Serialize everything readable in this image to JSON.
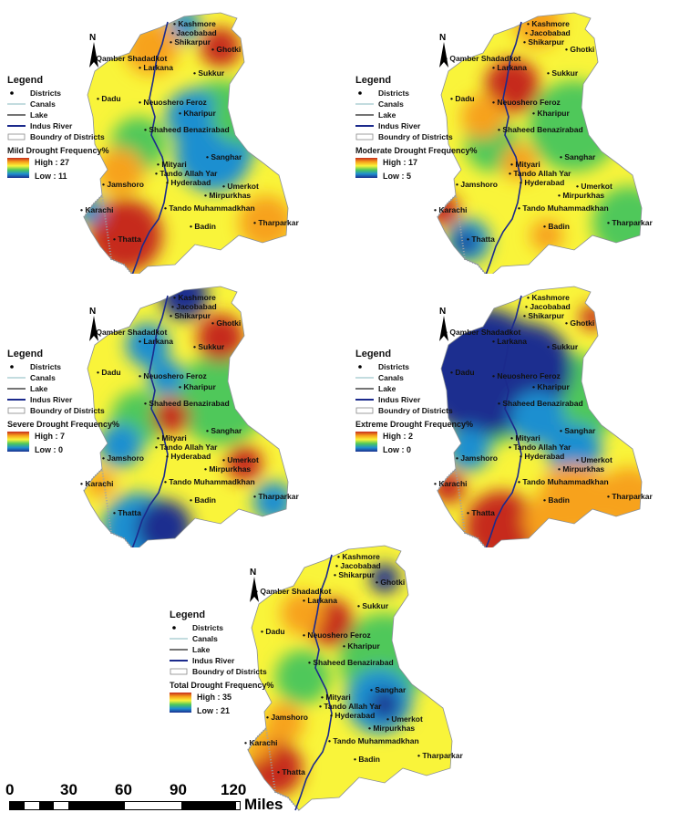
{
  "colors": {
    "high": "#c62c1c",
    "mid_high": "#f7a21b",
    "mid": "#f9f43a",
    "mid_low": "#4fc85a",
    "low": "#1f8fd0",
    "lowest": "#1a2f8f",
    "river": "#1b2a8c",
    "sea_fill": "#dde2e7"
  },
  "legend": {
    "title": "Legend",
    "items": [
      {
        "label": "Districts",
        "icon": "district-point-icon"
      },
      {
        "label": "Canals",
        "icon": "canal-line-icon"
      },
      {
        "label": "Lake",
        "icon": "lake-line-icon"
      },
      {
        "label": "Indus River",
        "icon": "river-line-icon"
      },
      {
        "label": "Boundry of Districts",
        "icon": "boundary-box-icon"
      }
    ]
  },
  "north_label": "N",
  "panels": [
    {
      "ramp_title": "Mild Drought Frequency%",
      "high": "High : 27",
      "low": "Low : 11"
    },
    {
      "ramp_title": "Moderate Drought Frequency%",
      "high": "High : 17",
      "low": "Low : 5"
    },
    {
      "ramp_title": "Severe Drought Frequency%",
      "high": "High : 7",
      "low": "Low : 0"
    },
    {
      "ramp_title": "Extreme Drought Frequency%",
      "high": "High : 2",
      "low": "Low : 0"
    },
    {
      "ramp_title": "Total Drought Frequency%",
      "high": "High : 35",
      "low": "Low : 21"
    }
  ],
  "districts": [
    "Kashmore",
    "Jacobabad",
    "Shikarpur",
    "Ghotki",
    "Qamber Shadadkot",
    "Larkana",
    "Sukkur",
    "Dadu",
    "Neuoshero Feroz",
    "Kharipur",
    "Shaheed Benazirabad",
    "Sanghar",
    "Mityari",
    "Tando Allah Yar",
    "Hyderabad",
    "Umerkot",
    "Mirpurkhas",
    "Jamshoro",
    "Karachi",
    "Tando Muhammadkhan",
    "Badin",
    "Tharparkar",
    "Thatta"
  ],
  "scale": {
    "ticks": [
      "0",
      "30",
      "60",
      "90",
      "120"
    ],
    "units": "Miles"
  }
}
